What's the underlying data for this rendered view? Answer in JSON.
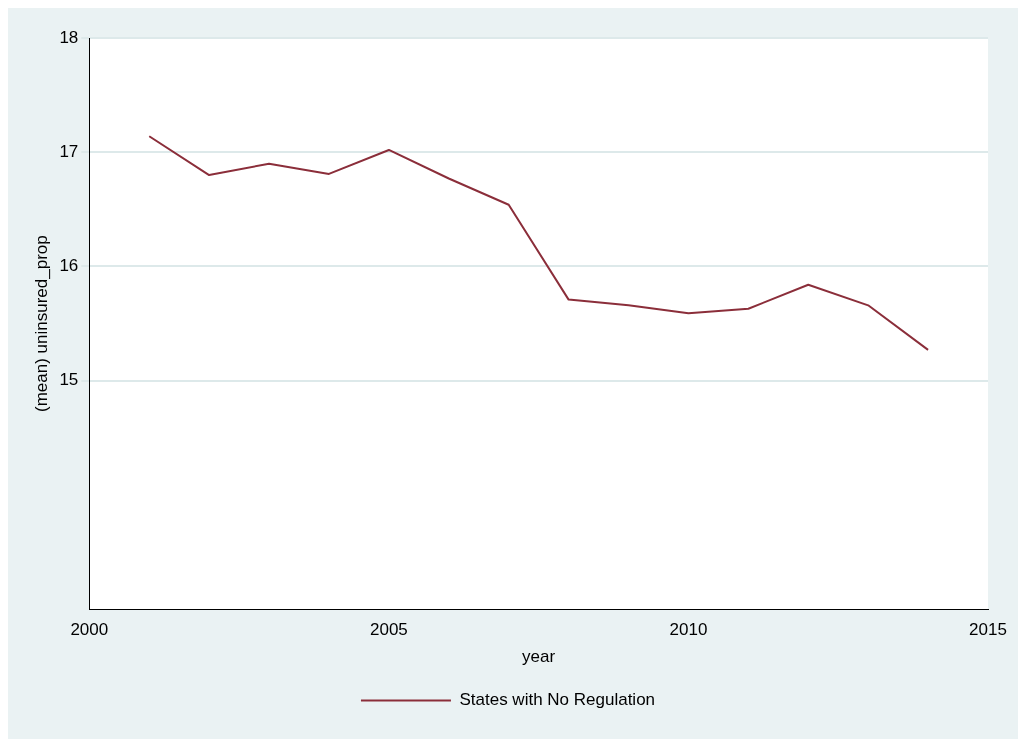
{
  "chart_data": {
    "type": "line",
    "xlabel": "year",
    "ylabel": "(mean) uninsured_prop",
    "x": [
      2001,
      2002,
      2003,
      2004,
      2005,
      2006,
      2007,
      2008,
      2009,
      2010,
      2011,
      2012,
      2013,
      2014
    ],
    "series": [
      {
        "name": "States with No Regulation",
        "color": "#8b2e3a",
        "values": [
          17.14,
          16.8,
          16.9,
          16.81,
          17.02,
          16.77,
          16.54,
          15.71,
          15.66,
          15.59,
          15.63,
          15.84,
          15.66,
          15.27
        ]
      }
    ],
    "xlim": [
      2000,
      2015
    ],
    "xticks": [
      2000,
      2005,
      2010,
      2015
    ],
    "ylim": [
      13,
      18
    ],
    "yticks": [
      15,
      16,
      17,
      18
    ],
    "grid": "y",
    "legend": "bottom",
    "marker": "none",
    "line_style": "solid"
  }
}
